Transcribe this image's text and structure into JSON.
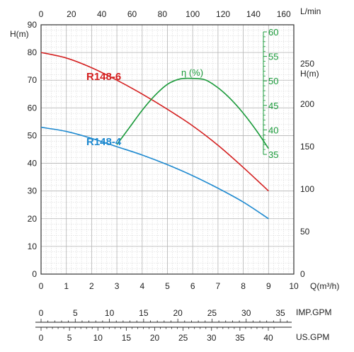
{
  "chart_data": {
    "type": "line",
    "x_axis": {
      "label": "Q(m³/h)",
      "range": [
        0,
        10
      ],
      "ticks": [
        "0",
        "1",
        "2",
        "3",
        "4",
        "5",
        "6",
        "7",
        "8",
        "9",
        "10"
      ]
    },
    "top_axis": {
      "label": "L/min",
      "range": [
        0,
        166.67
      ],
      "ticks": [
        "0",
        "20",
        "40",
        "60",
        "80",
        "100",
        "120",
        "140",
        "160"
      ],
      "values": [
        0,
        20,
        40,
        60,
        80,
        100,
        120,
        140,
        160
      ]
    },
    "y_axis": {
      "label": "H(m)",
      "range": [
        0,
        90
      ],
      "ticks": [
        "0",
        "10",
        "20",
        "30",
        "40",
        "50",
        "60",
        "70",
        "80",
        "90"
      ]
    },
    "right_axis": {
      "label": "H(m)",
      "label_top": "250",
      "ticks": [
        "0",
        "50",
        "100",
        "150",
        "200"
      ],
      "values": [
        0,
        50,
        100,
        150,
        200
      ]
    },
    "eff_axis": {
      "ticks": [
        "35",
        "40",
        "45",
        "50",
        "55",
        "60"
      ],
      "values": [
        35,
        40,
        45,
        50,
        55,
        60
      ],
      "color": "#1a9a3a"
    },
    "imp_axis": {
      "label": "IMP.GPM",
      "ticks": [
        "0",
        "5",
        "10",
        "15",
        "20",
        "25",
        "30",
        "35"
      ],
      "values": [
        0,
        5,
        10,
        15,
        20,
        25,
        30,
        35
      ]
    },
    "us_axis": {
      "label": "US.GPM",
      "ticks": [
        "0",
        "5",
        "10",
        "15",
        "20",
        "25",
        "30",
        "35",
        "40"
      ],
      "values": [
        0,
        5,
        10,
        15,
        20,
        25,
        30,
        35,
        40
      ]
    },
    "series": [
      {
        "name": "R148-6",
        "color": "#d42020",
        "x": [
          0,
          1,
          2,
          3,
          4,
          5,
          6,
          7,
          8,
          9
        ],
        "y": [
          80,
          78,
          74.5,
          70,
          65,
          59.5,
          53.5,
          46.5,
          38.5,
          30
        ]
      },
      {
        "name": "R148-4",
        "color": "#1f8ad0",
        "x": [
          0,
          1,
          2,
          3,
          4,
          5,
          6,
          7,
          8,
          9
        ],
        "y": [
          53,
          51.5,
          49,
          46,
          43,
          39.5,
          35.5,
          31,
          26,
          20
        ]
      },
      {
        "name": "η (%)",
        "color": "#1a9a3a",
        "x": [
          3,
          3.5,
          4,
          4.5,
          5,
          5.5,
          6,
          6.5,
          7,
          7.5,
          8,
          8.5,
          9
        ],
        "y": [
          37,
          40.5,
          44,
          47,
          49.3,
          50.4,
          50.5,
          50.2,
          48.6,
          46.3,
          43.4,
          40,
          36.2
        ]
      }
    ]
  }
}
